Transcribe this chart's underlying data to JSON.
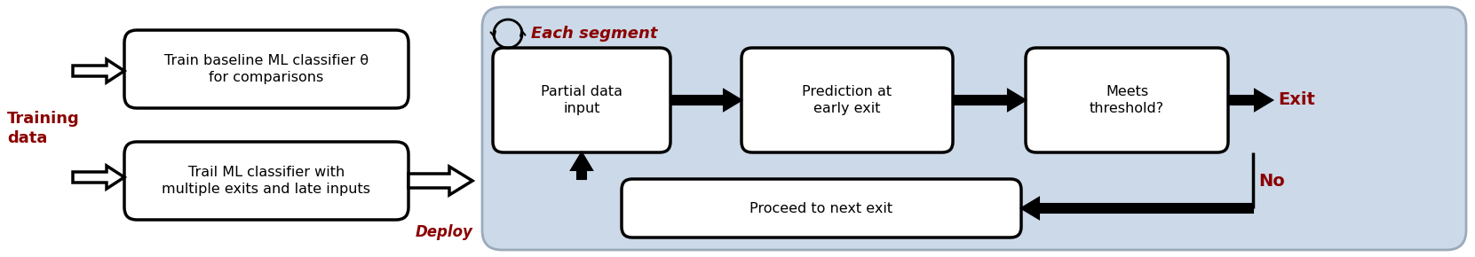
{
  "fig_width": 16.61,
  "fig_height": 2.9,
  "dpi": 100,
  "bg_color": "#ffffff",
  "dark_red": "#8B0000",
  "light_blue_bg": "#ccd9e8",
  "box_fill": "#ffffff",
  "box_edge": "#000000",
  "training_data_text": "Training\ndata",
  "box1_text": "Train baseline ML classifier θ\nfor comparisons",
  "box2_text": "Trail ML classifier with\nmultiple exits and late inputs",
  "deploy_text": "Deploy",
  "segment_text": "Each segment",
  "box3_text": "Partial data\ninput",
  "box4_text": "Prediction at\nearly exit",
  "box5_text": "Meets\nthreshold?",
  "box6_text": "Proceed to next exit",
  "exit_text": "Exit",
  "no_text": "No"
}
